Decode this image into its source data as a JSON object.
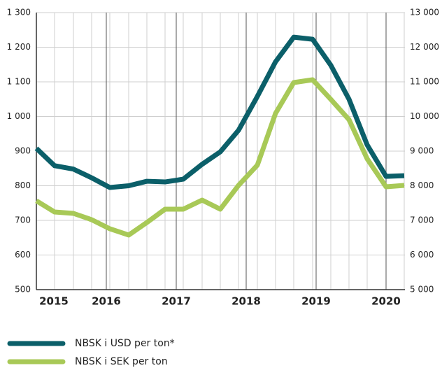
{
  "chart_data": {
    "type": "line",
    "x": [
      2015,
      2015.26,
      2015.53,
      2015.79,
      2016.05,
      2016.32,
      2016.58,
      2016.84,
      2017.1,
      2017.37,
      2017.63,
      2017.89,
      2018.16,
      2018.42,
      2018.68,
      2018.95,
      2019.21,
      2019.47,
      2019.73,
      2020.0,
      2020.26
    ],
    "xlim": [
      2015,
      2020.27
    ],
    "xticks": [
      {
        "value": 2015.25,
        "label": "2015"
      },
      2016,
      2017,
      2018,
      2019,
      2020
    ],
    "ylim": [
      500,
      1300
    ],
    "yticks": [
      {
        "value": 500,
        "label": "500"
      },
      {
        "value": 600,
        "label": "600"
      },
      {
        "value": 700,
        "label": "700"
      },
      {
        "value": 800,
        "label": "800"
      },
      {
        "value": 900,
        "label": "900"
      },
      {
        "value": 1000,
        "label": "1 000"
      },
      {
        "value": 1100,
        "label": "1 100"
      },
      {
        "value": 1200,
        "label": "1 200"
      },
      {
        "value": 1300,
        "label": "1 300"
      }
    ],
    "y2lim": [
      5000,
      13000
    ],
    "y2ticks": [
      {
        "value": 5000,
        "label": "5 000"
      },
      {
        "value": 6000,
        "label": "6 000"
      },
      {
        "value": 7000,
        "label": "7 000"
      },
      {
        "value": 8000,
        "label": "8 000"
      },
      {
        "value": 9000,
        "label": "9 000"
      },
      {
        "value": 10000,
        "label": "10 000"
      },
      {
        "value": 11000,
        "label": "11 000"
      },
      {
        "value": 12000,
        "label": "12 000"
      },
      {
        "value": 13000,
        "label": "13 000"
      }
    ],
    "grid": true,
    "series": [
      {
        "name": "NBSK i USD per ton*",
        "color": "#0b5f69",
        "values": [
          908,
          858,
          848,
          823,
          795,
          800,
          813,
          811,
          819,
          862,
          898,
          960,
          1058,
          1158,
          1229,
          1223,
          1148,
          1050,
          918,
          827,
          829
        ]
      },
      {
        "name": "NBSK i SEK per ton",
        "color": "#a8c957",
        "axis": "y2",
        "values": [
          7566,
          7242,
          7202,
          7020,
          6758,
          6576,
          6939,
          7323,
          7323,
          7586,
          7323,
          8010,
          8596,
          10091,
          10980,
          11061,
          10495,
          9909,
          8778,
          7970,
          8010
        ]
      }
    ]
  }
}
